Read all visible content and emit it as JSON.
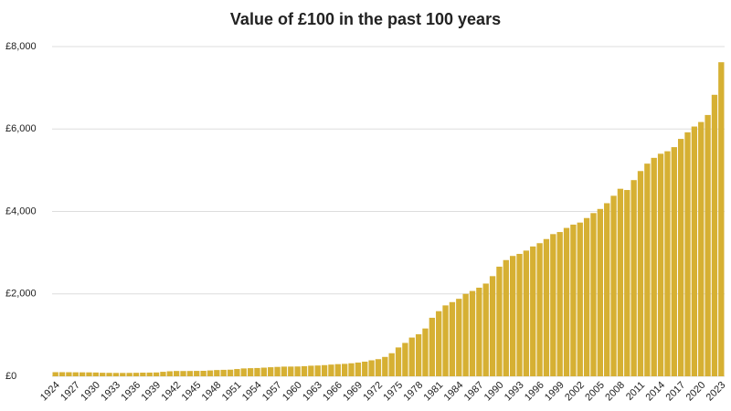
{
  "chart_data": {
    "type": "bar",
    "title": "Value of £100 in the past 100 years",
    "categories": [
      "1924",
      null,
      null,
      "1927",
      null,
      null,
      "1930",
      null,
      null,
      "1933",
      null,
      null,
      "1936",
      null,
      null,
      "1939",
      null,
      null,
      "1942",
      null,
      null,
      "1945",
      null,
      null,
      "1948",
      null,
      null,
      "1951",
      null,
      null,
      "1954",
      null,
      null,
      "1957",
      null,
      null,
      "1960",
      null,
      null,
      "1963",
      null,
      null,
      "1966",
      null,
      null,
      "1969",
      null,
      null,
      "1972",
      null,
      null,
      "1975",
      null,
      null,
      "1978",
      null,
      null,
      "1981",
      null,
      null,
      "1984",
      null,
      null,
      "1987",
      null,
      null,
      "1990",
      null,
      null,
      "1993",
      null,
      null,
      "1996",
      null,
      null,
      "1999",
      null,
      null,
      "2002",
      null,
      null,
      "2005",
      null,
      null,
      "2008",
      null,
      null,
      "2011",
      null,
      null,
      "2014",
      null,
      null,
      "2017",
      null,
      null,
      "2020",
      null,
      null,
      "2023"
    ],
    "values": [
      100,
      100,
      99,
      97,
      96,
      95,
      92,
      86,
      84,
      82,
      82,
      83,
      85,
      89,
      90,
      93,
      109,
      122,
      129,
      128,
      129,
      131,
      133,
      142,
      152,
      157,
      161,
      176,
      191,
      197,
      201,
      210,
      220,
      228,
      235,
      236,
      238,
      246,
      257,
      262,
      271,
      284,
      295,
      302,
      316,
      333,
      355,
      388,
      416,
      470,
      560,
      700,
      810,
      940,
      1020,
      1160,
      1420,
      1580,
      1720,
      1800,
      1880,
      2000,
      2070,
      2150,
      2250,
      2430,
      2660,
      2820,
      2920,
      2970,
      3050,
      3150,
      3230,
      3330,
      3450,
      3500,
      3600,
      3680,
      3730,
      3840,
      3960,
      4060,
      4200,
      4380,
      4550,
      4520,
      4760,
      4980,
      5160,
      5300,
      5400,
      5460,
      5560,
      5760,
      5920,
      6060,
      6170,
      6340,
      6830,
      7620
    ],
    "color": "#d6b033",
    "ylim": [
      0,
      8000
    ],
    "yticks": [
      {
        "value": 0,
        "label": "£0"
      },
      {
        "value": 2000,
        "label": "£2,000"
      },
      {
        "value": 4000,
        "label": "£4,000"
      },
      {
        "value": 6000,
        "label": "£6,000"
      },
      {
        "value": 8000,
        "label": "£8,000"
      }
    ],
    "grid": true
  }
}
